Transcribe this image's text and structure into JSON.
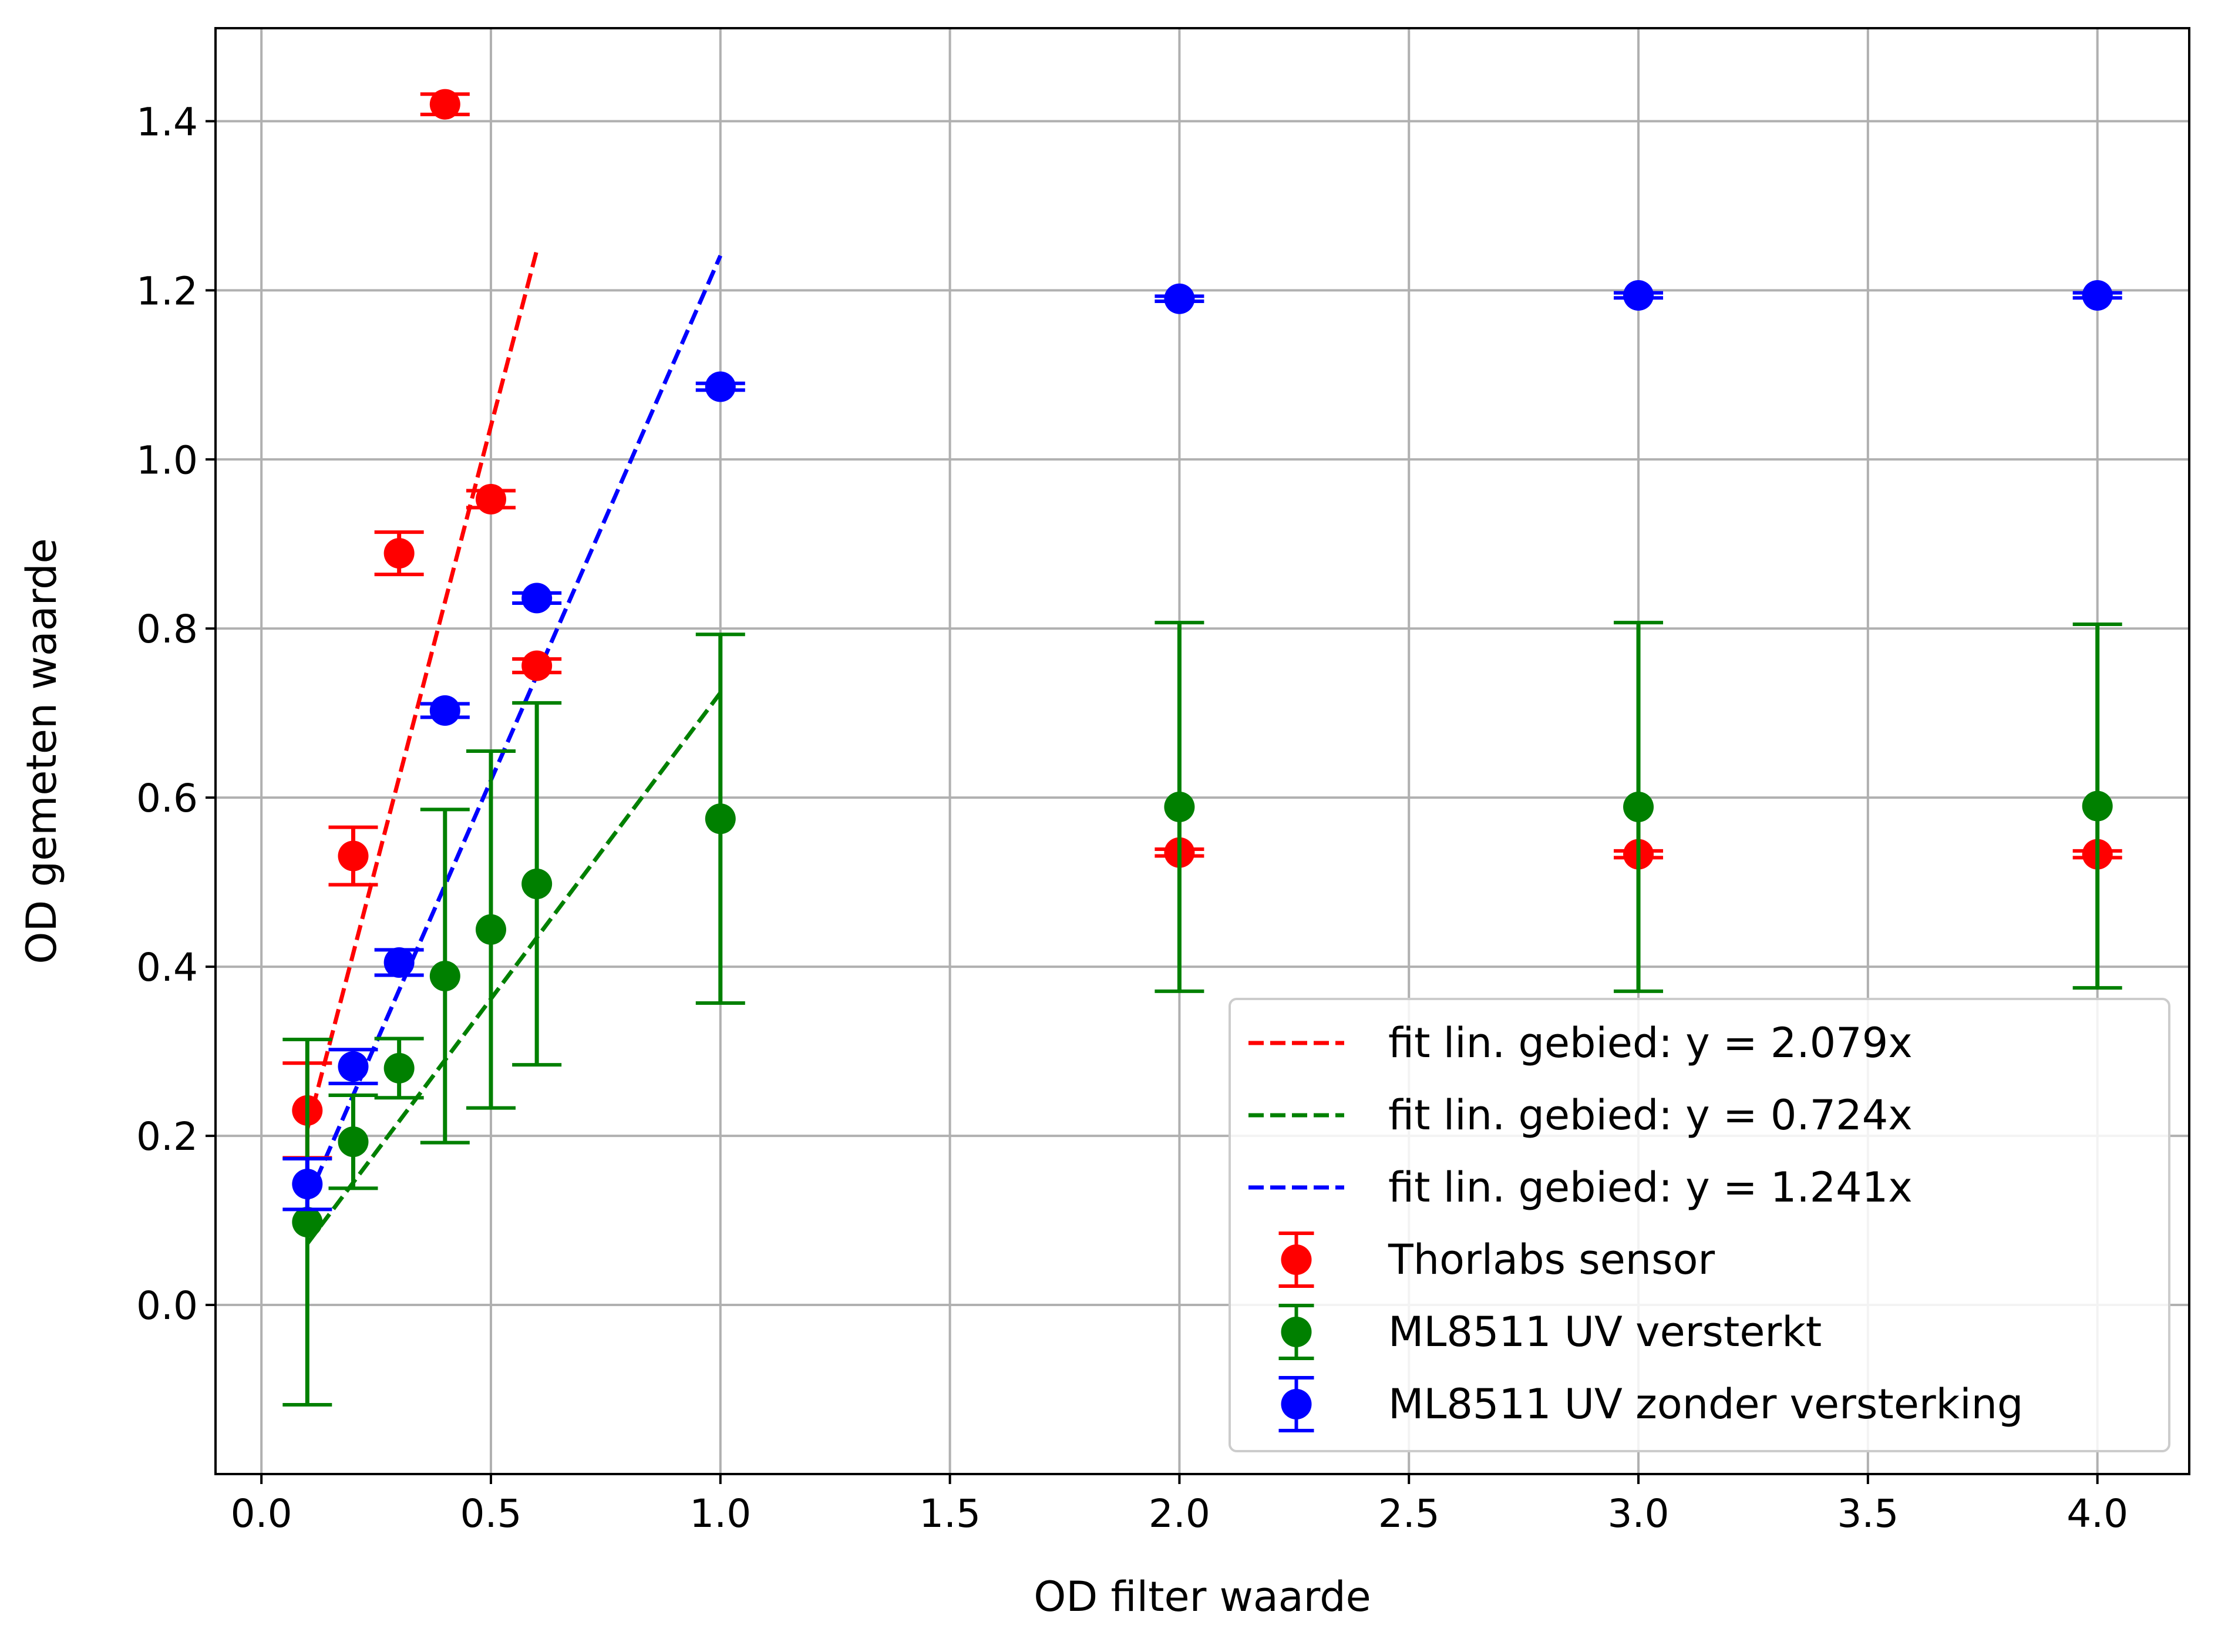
{
  "chart_data": {
    "type": "scatter",
    "title": "",
    "xlabel": "OD filter waarde",
    "ylabel": "OD gemeten waarde",
    "xlim": [
      -0.1,
      4.2
    ],
    "ylim": [
      -0.2,
      1.51
    ],
    "x_ticks": [
      0.0,
      0.5,
      1.0,
      1.5,
      2.0,
      2.5,
      3.0,
      3.5,
      4.0
    ],
    "x_tick_labels": [
      "0.0",
      "0.5",
      "1.0",
      "1.5",
      "2.0",
      "2.5",
      "3.0",
      "3.5",
      "4.0"
    ],
    "y_ticks": [
      0.0,
      0.2,
      0.4,
      0.6,
      0.8,
      1.0,
      1.2,
      1.4
    ],
    "y_tick_labels": [
      "0.0",
      "0.2",
      "0.4",
      "0.6",
      "0.8",
      "1.0",
      "1.2",
      "1.4"
    ],
    "grid": true,
    "legend_position": "lower-right",
    "series": [
      {
        "name": "Thorlabs sensor",
        "kind": "errorbar",
        "color": "#ff0000",
        "x": [
          0.1,
          0.2,
          0.3,
          0.4,
          0.5,
          0.6,
          2.0,
          3.0,
          4.0
        ],
        "y": [
          0.23,
          0.531,
          0.889,
          1.42,
          0.953,
          0.756,
          0.535,
          0.533,
          0.533
        ],
        "yerr": [
          0.056,
          0.034,
          0.025,
          0.012,
          0.01,
          0.008,
          0.004,
          0.004,
          0.004
        ]
      },
      {
        "name": "ML8511 UV versterkt",
        "kind": "errorbar",
        "color": "#008000",
        "x": [
          0.1,
          0.2,
          0.3,
          0.4,
          0.5,
          0.6,
          1.0,
          2.0,
          3.0,
          4.0
        ],
        "y": [
          0.098,
          0.193,
          0.28,
          0.389,
          0.444,
          0.498,
          0.575,
          0.589,
          0.589,
          0.59
        ],
        "yerr": [
          0.216,
          0.055,
          0.035,
          0.197,
          0.211,
          0.214,
          0.218,
          0.218,
          0.218,
          0.215
        ]
      },
      {
        "name": "ML8511 UV zonder versterking",
        "kind": "errorbar",
        "color": "#0000ff",
        "x": [
          0.1,
          0.2,
          0.3,
          0.4,
          0.6,
          1.0,
          2.0,
          3.0,
          4.0
        ],
        "y": [
          0.143,
          0.282,
          0.405,
          0.703,
          0.836,
          1.086,
          1.19,
          1.194,
          1.194
        ],
        "yerr": [
          0.03,
          0.02,
          0.015,
          0.008,
          0.006,
          0.004,
          0.003,
          0.003,
          0.003
        ]
      }
    ],
    "fits": [
      {
        "name": "fit lin. gebied: y = 2.079x",
        "color": "#ff0000",
        "slope": 2.079,
        "x_range": [
          0.1,
          0.6
        ]
      },
      {
        "name": "fit lin. gebied: y = 0.724x",
        "color": "#008000",
        "slope": 0.724,
        "x_range": [
          0.1,
          1.0
        ]
      },
      {
        "name": "fit lin. gebied: y = 1.241x",
        "color": "#0000ff",
        "slope": 1.241,
        "x_range": [
          0.1,
          1.0
        ]
      }
    ]
  }
}
